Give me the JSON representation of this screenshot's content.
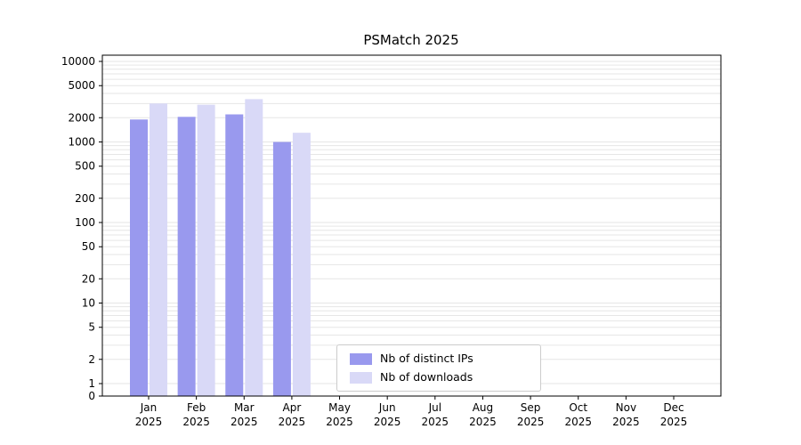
{
  "title": "PSMatch 2025",
  "colors": {
    "distinct_ips": "#9999ee",
    "downloads": "#d9d9f7",
    "grid": "#e6e6e6",
    "axis": "#000000",
    "legend_border": "#cccccc",
    "background": "#ffffff"
  },
  "chart_data": {
    "type": "bar",
    "title": "PSMatch 2025",
    "xlabel": "",
    "ylabel": "",
    "yscale": "log",
    "grid": "horizontal-minor",
    "legend_position": "lower-center",
    "year": "2025",
    "categories": [
      "Jan",
      "Feb",
      "Mar",
      "Apr",
      "May",
      "Jun",
      "Jul",
      "Aug",
      "Sep",
      "Oct",
      "Nov",
      "Dec"
    ],
    "yticks": [
      0,
      1,
      2,
      5,
      10,
      20,
      50,
      100,
      200,
      500,
      1000,
      2000,
      5000,
      10000
    ],
    "ylim": [
      0,
      13000
    ],
    "series": [
      {
        "name": "Nb of distinct IPs",
        "color": "#9999ee",
        "values": [
          1900,
          2050,
          2200,
          1000,
          null,
          null,
          null,
          null,
          null,
          null,
          null,
          null
        ]
      },
      {
        "name": "Nb of downloads",
        "color": "#d9d9f7",
        "values": [
          3000,
          2900,
          3400,
          1300,
          null,
          null,
          null,
          null,
          null,
          null,
          null,
          null
        ]
      }
    ]
  }
}
